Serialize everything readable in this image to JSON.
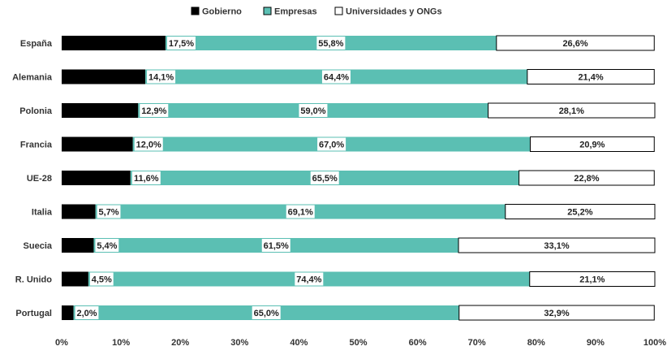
{
  "chart_data": {
    "type": "bar",
    "orientation": "horizontal",
    "stacked": true,
    "normalized": true,
    "categories": [
      "España",
      "Alemania",
      "Polonia",
      "Francia",
      "UE-28",
      "Italia",
      "Suecia",
      "R. Unido",
      "Portugal"
    ],
    "series": [
      {
        "name": "Gobierno",
        "color": "#000000",
        "values": [
          17.5,
          14.1,
          12.9,
          12.0,
          11.6,
          5.7,
          5.4,
          4.5,
          2.0
        ],
        "labels": [
          "17,5%",
          "14,1%",
          "12,9%",
          "12,0%",
          "11,6%",
          "5,7%",
          "5,4%",
          "4,5%",
          "2,0%"
        ]
      },
      {
        "name": "Empresas",
        "color": "#5bbfb3",
        "values": [
          55.8,
          64.4,
          59.0,
          67.0,
          65.5,
          69.1,
          61.5,
          74.4,
          65.0
        ],
        "labels": [
          "55,8%",
          "64,4%",
          "59,0%",
          "67,0%",
          "65,5%",
          "69,1%",
          "61,5%",
          "74,4%",
          "65,0%"
        ]
      },
      {
        "name": "Universidades y ONGs",
        "color": "#ffffff",
        "values": [
          26.6,
          21.4,
          28.1,
          20.9,
          22.8,
          25.2,
          33.1,
          21.1,
          32.9
        ],
        "labels": [
          "26,6%",
          "21,4%",
          "28,1%",
          "20,9%",
          "22,8%",
          "25,2%",
          "33,1%",
          "21,1%",
          "32,9%"
        ]
      }
    ],
    "xlim": [
      0,
      100
    ],
    "x_ticks": [
      "0%",
      "10%",
      "20%",
      "30%",
      "40%",
      "50%",
      "60%",
      "70%",
      "80%",
      "90%",
      "100%"
    ],
    "legend_position": "top-center",
    "grid": false,
    "title": "",
    "xlabel": "",
    "ylabel": ""
  }
}
